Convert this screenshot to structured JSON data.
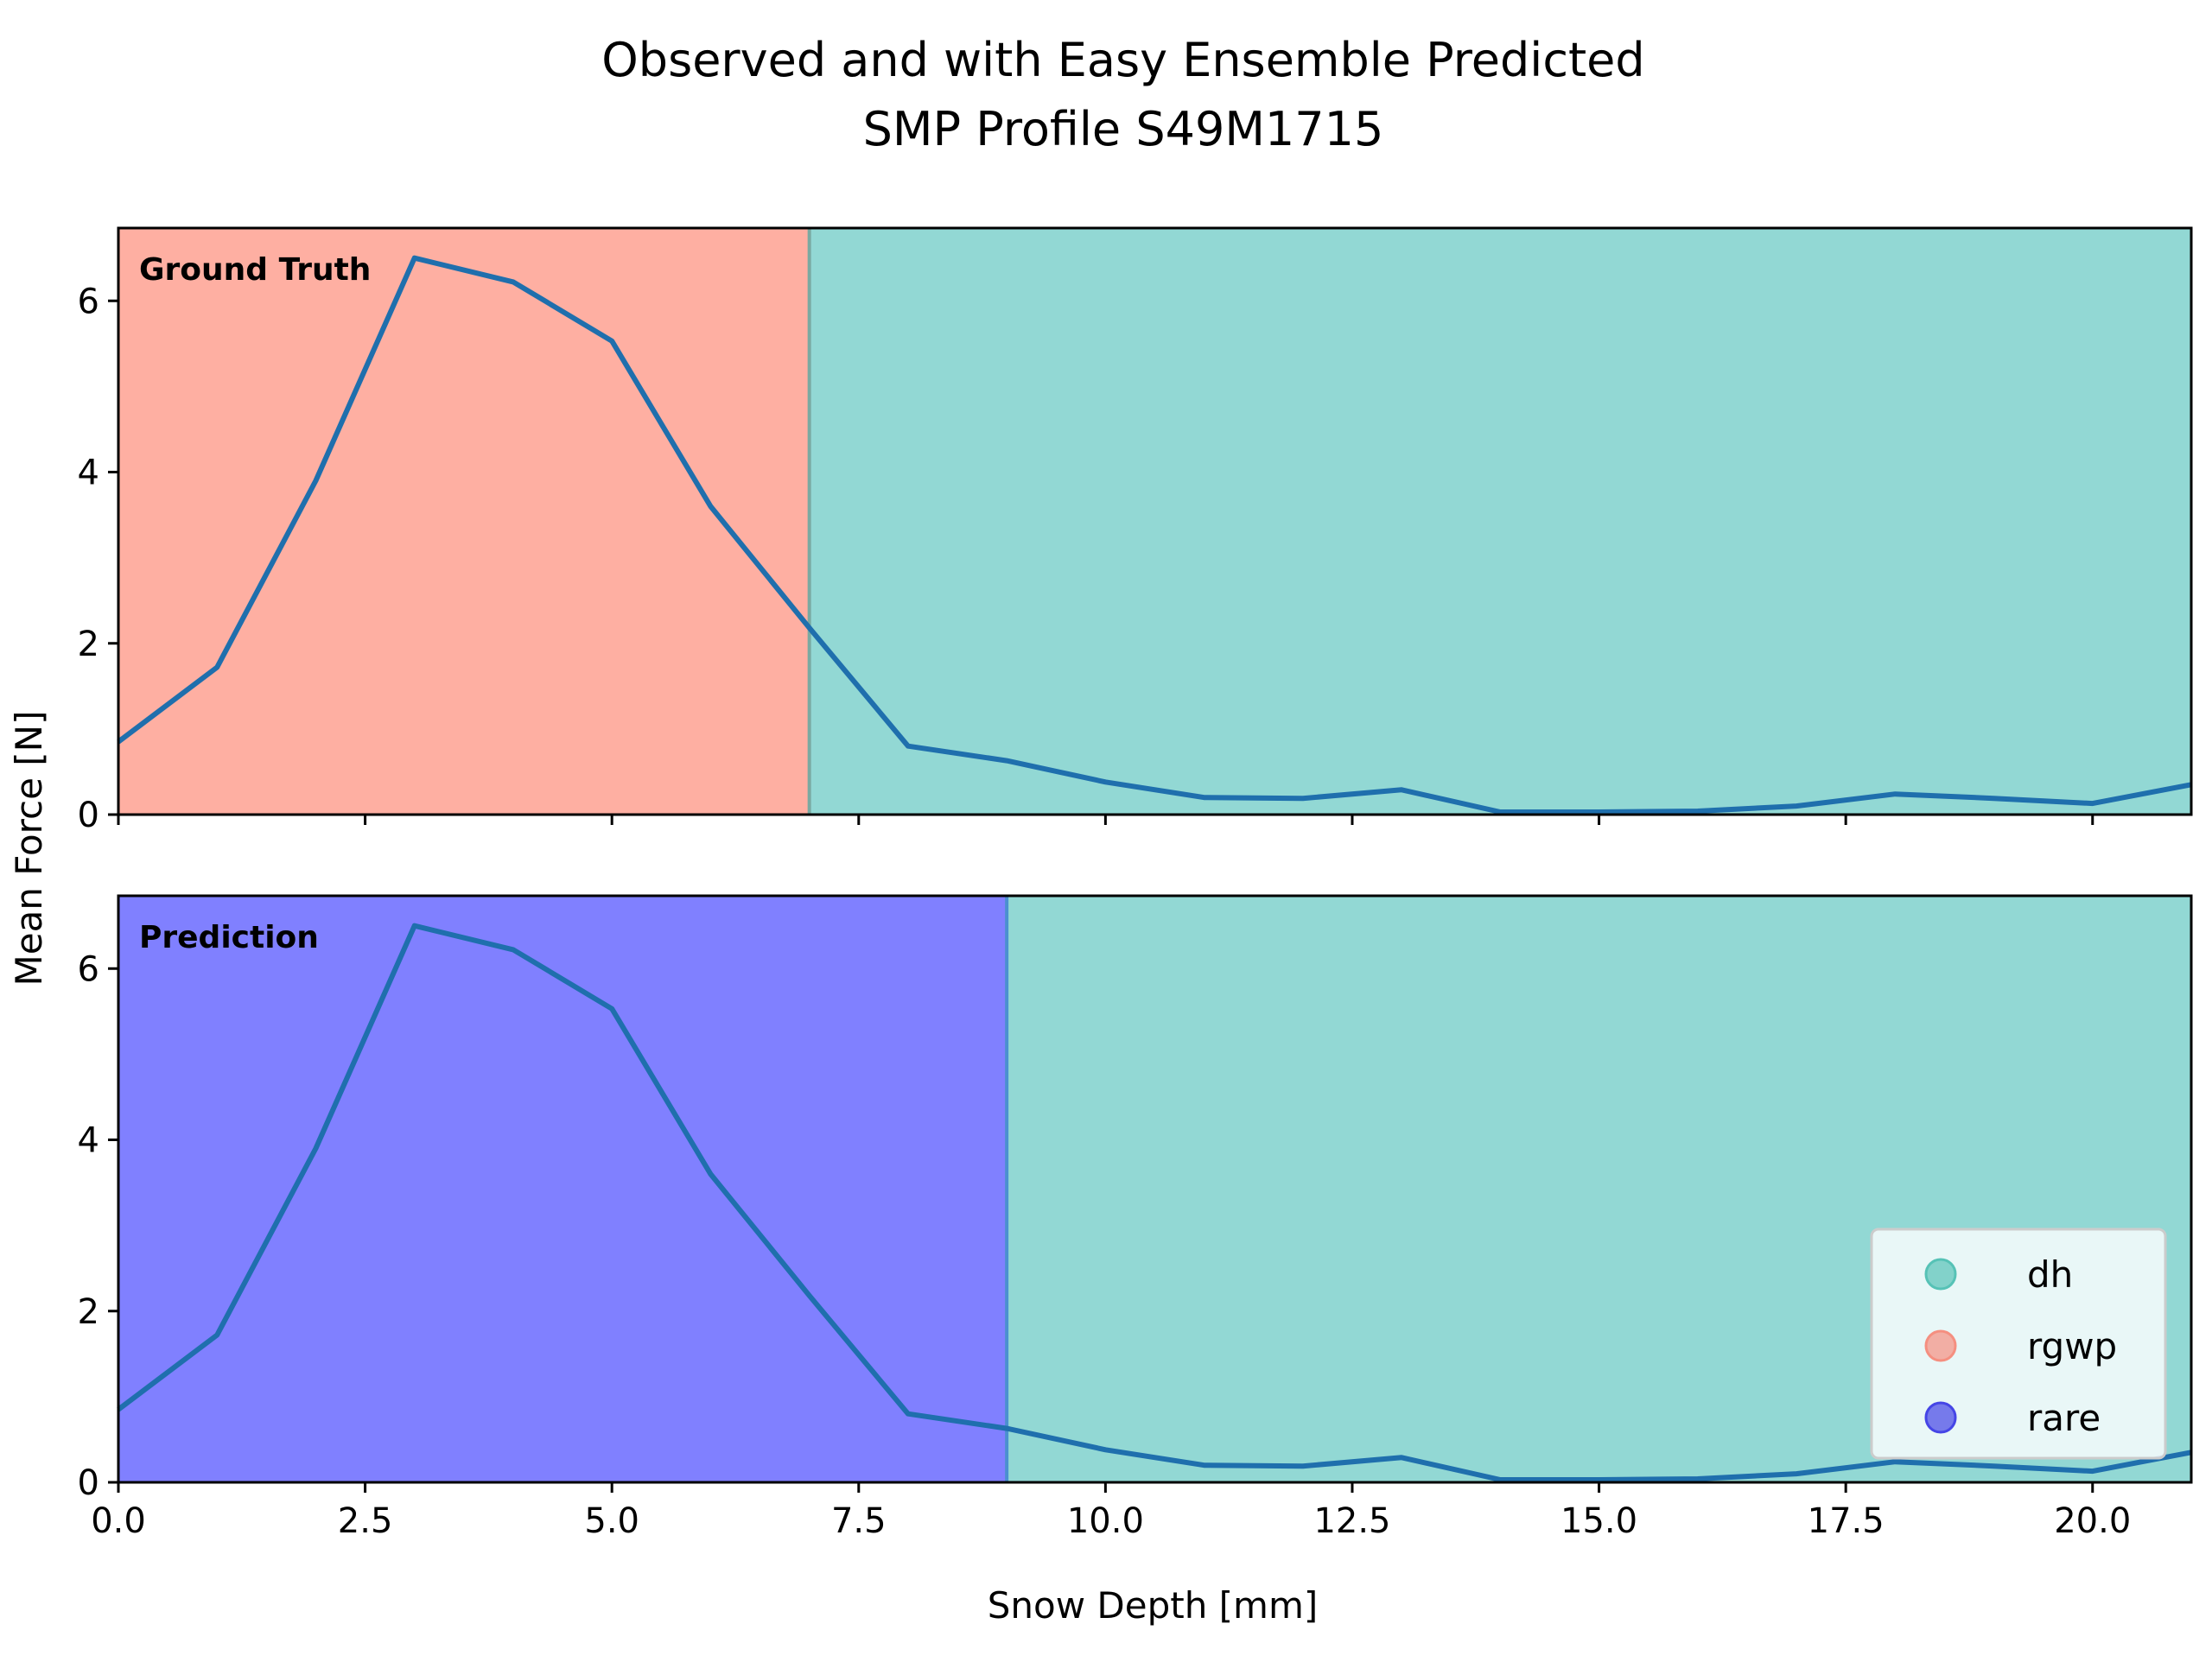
{
  "chart_data": {
    "type": "line",
    "title_lines": [
      "Observed and with Easy Ensemble Predicted",
      "SMP Profile S49M1715"
    ],
    "xlabel": "Snow Depth [mm]",
    "ylabel": "Mean Force [N]",
    "xlim": [
      0,
      21
    ],
    "ylim": [
      0,
      6.85
    ],
    "xticks": [
      0.0,
      2.5,
      5.0,
      7.5,
      10.0,
      12.5,
      15.0,
      17.5,
      20.0
    ],
    "xtick_labels": [
      "0.0",
      "2.5",
      "5.0",
      "7.5",
      "10.0",
      "12.5",
      "15.0",
      "17.5",
      "20.0"
    ],
    "yticks": [
      0,
      2,
      4,
      6
    ],
    "ytick_labels": [
      "0",
      "2",
      "4",
      "6"
    ],
    "line_color": "#1f6fad",
    "x": [
      0,
      1,
      2,
      3,
      4,
      5,
      6,
      7,
      8,
      9,
      10,
      11,
      12,
      13,
      14,
      15,
      16,
      17,
      18,
      19,
      20,
      21
    ],
    "y": [
      0.85,
      1.72,
      3.9,
      6.5,
      6.22,
      5.53,
      3.6,
      2.18,
      0.8,
      0.63,
      0.38,
      0.2,
      0.19,
      0.29,
      0.03,
      0.03,
      0.04,
      0.1,
      0.24,
      0.19,
      0.13,
      0.35
    ],
    "panels": [
      {
        "label": "Ground Truth",
        "segments": [
          {
            "class": "rgwp",
            "from": 0,
            "to": 7
          },
          {
            "class": "dh",
            "from": 7,
            "to": 21
          }
        ]
      },
      {
        "label": "Prediction",
        "segments": [
          {
            "class": "rare",
            "from": 0,
            "to": 9
          },
          {
            "class": "dh",
            "from": 9,
            "to": 21
          }
        ]
      }
    ],
    "class_colors": {
      "dh": "#92d8d4",
      "rgwp": "#feafa2",
      "rare": "#8080ff"
    },
    "legend": {
      "position": "lower-right",
      "entries": [
        {
          "name": "dh",
          "color": "#56c2b6"
        },
        {
          "name": "rgwp",
          "color": "#f58f80"
        },
        {
          "name": "rare",
          "color": "#4545e6"
        }
      ]
    },
    "grid": false
  }
}
